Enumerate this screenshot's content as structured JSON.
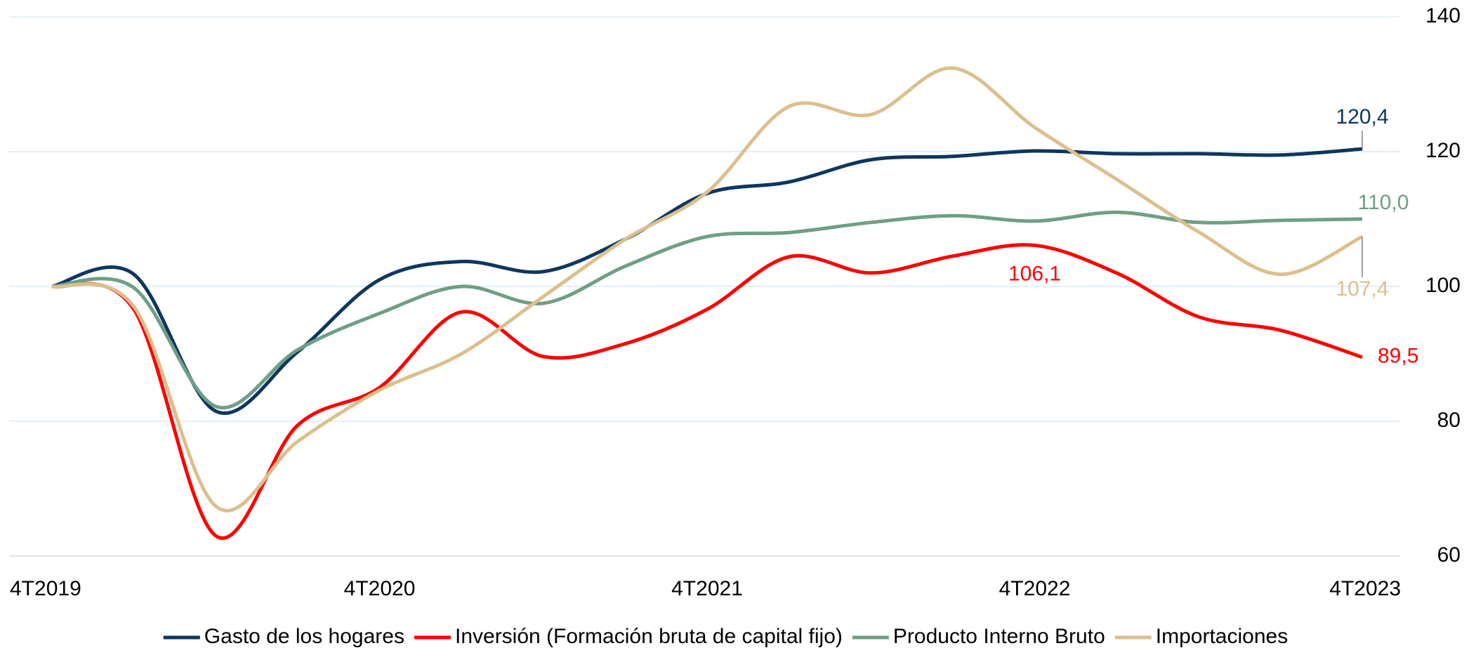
{
  "chart_data": {
    "type": "line",
    "categories": [
      "4T2019",
      null,
      null,
      null,
      "4T2020",
      null,
      null,
      null,
      "4T2021",
      null,
      null,
      null,
      "4T2022",
      null,
      null,
      null,
      "4T2023"
    ],
    "series": [
      {
        "name": "Gasto de los hogares",
        "color": "#0e3660",
        "values": [
          100,
          101.8,
          81.5,
          90.3,
          101,
          103.7,
          102.2,
          107,
          113.8,
          115.5,
          118.8,
          119.3,
          120.1,
          119.7,
          119.7,
          119.5,
          120.4
        ],
        "value_labels": [
          null,
          null,
          null,
          null,
          null,
          null,
          null,
          null,
          null,
          null,
          null,
          null,
          null,
          null,
          null,
          null,
          "120,4"
        ]
      },
      {
        "name": "Inversión (Formación bruta de capital fijo)",
        "color": "#ff0000",
        "values": [
          100,
          96.6,
          63,
          79.4,
          85,
          96.2,
          89.6,
          91.5,
          96.6,
          104.4,
          102,
          104.5,
          106.1,
          102,
          95.5,
          93.5,
          89.5
        ],
        "value_labels": [
          null,
          null,
          null,
          null,
          null,
          null,
          null,
          null,
          null,
          null,
          null,
          null,
          "106,1",
          null,
          null,
          null,
          "89,5"
        ]
      },
      {
        "name": "Producto Interno Bruto",
        "color": "#6e9f84",
        "values": [
          100,
          99.8,
          82.2,
          90.6,
          96,
          100,
          97.5,
          103,
          107.4,
          108,
          109.5,
          110.5,
          109.7,
          111,
          109.5,
          109.8,
          110.0
        ],
        "value_labels": [
          null,
          null,
          null,
          null,
          null,
          null,
          null,
          null,
          null,
          null,
          null,
          null,
          null,
          null,
          null,
          null,
          "110,0"
        ]
      },
      {
        "name": "Importaciones",
        "color": "#dcbf8c",
        "values": [
          100,
          97,
          67.4,
          77,
          84.6,
          90,
          98.5,
          107,
          114,
          126.7,
          125.5,
          132.4,
          123.6,
          115.9,
          108.1,
          101.8,
          107.4
        ],
        "value_labels": [
          null,
          null,
          null,
          null,
          null,
          null,
          null,
          null,
          null,
          null,
          null,
          null,
          null,
          null,
          null,
          null,
          "107,4"
        ]
      }
    ],
    "ylim": [
      60,
      140
    ],
    "yticks": [
      60,
      80,
      100,
      120,
      140
    ],
    "grid": true,
    "legend": "bottom"
  }
}
